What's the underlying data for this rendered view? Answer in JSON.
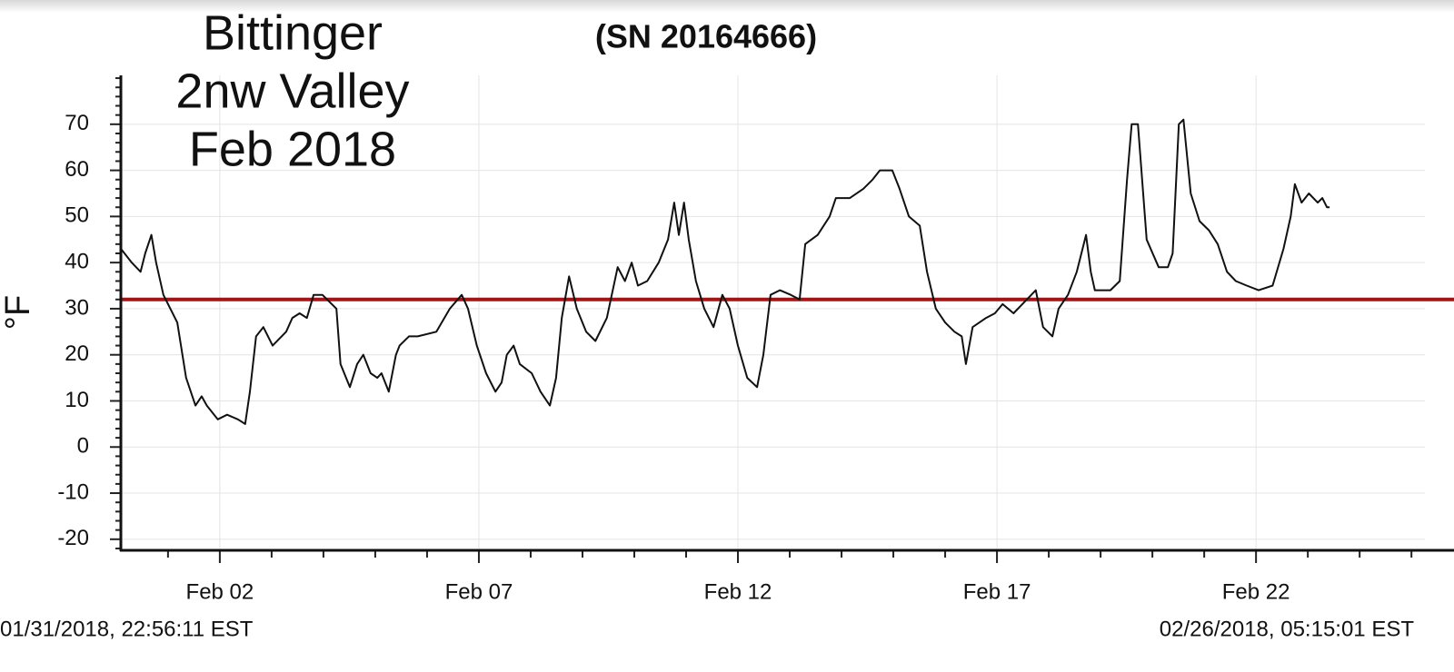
{
  "chart_data": {
    "type": "line",
    "title": [
      "Bittinger",
      "2nw Valley",
      "Feb 2018"
    ],
    "subtitle": "(SN 20164666)",
    "y_label": "°F",
    "footer_left": "01/31/2018, 22:56:11 EST",
    "footer_right": "02/26/2018, 05:15:01 EST",
    "xlim": [
      0.09,
      25.26
    ],
    "ylim": [
      -22.4,
      80.6
    ],
    "xticks": [
      {
        "value": 2,
        "label": "Feb 02"
      },
      {
        "value": 7,
        "label": "Feb 07"
      },
      {
        "value": 12,
        "label": "Feb 12"
      },
      {
        "value": 17,
        "label": "Feb 17"
      },
      {
        "value": 22,
        "label": "Feb 22"
      }
    ],
    "yticks": [
      -20,
      -10,
      0,
      10,
      20,
      30,
      40,
      50,
      60,
      70
    ],
    "xminorticks": [
      1,
      3,
      4,
      5,
      6,
      8,
      9,
      10,
      11,
      13,
      14,
      15,
      16,
      18,
      19,
      20,
      21,
      23,
      24,
      25
    ],
    "yminorticks": [
      -22,
      -18,
      -16,
      -14,
      -12,
      -8,
      -6,
      -4,
      -2,
      2,
      4,
      6,
      8,
      12,
      14,
      16,
      18,
      22,
      24,
      26,
      28,
      32,
      34,
      36,
      38,
      42,
      44,
      46,
      48,
      52,
      54,
      56,
      58,
      62,
      64,
      66,
      68,
      72,
      74,
      76,
      78,
      80
    ],
    "grid": true,
    "reference_line": {
      "value": 32,
      "color": "#a31515"
    },
    "x": [
      0.09,
      0.3,
      0.47,
      0.56,
      0.68,
      0.77,
      0.91,
      1.18,
      1.35,
      1.53,
      1.65,
      1.75,
      1.96,
      2.14,
      2.35,
      2.49,
      2.58,
      2.7,
      2.84,
      3.02,
      3.28,
      3.4,
      3.54,
      3.68,
      3.81,
      3.98,
      4.25,
      4.33,
      4.51,
      4.65,
      4.77,
      4.91,
      5.04,
      5.12,
      5.26,
      5.4,
      5.47,
      5.65,
      5.82,
      6.18,
      6.44,
      6.67,
      6.79,
      6.96,
      7.14,
      7.32,
      7.44,
      7.54,
      7.67,
      7.79,
      8.02,
      8.19,
      8.37,
      8.49,
      8.6,
      8.74,
      8.89,
      9.07,
      9.25,
      9.47,
      9.68,
      9.82,
      9.95,
      10.07,
      10.25,
      10.47,
      10.65,
      10.77,
      10.86,
      10.96,
      11.05,
      11.19,
      11.35,
      11.53,
      11.7,
      11.84,
      12.0,
      12.18,
      12.37,
      12.49,
      12.63,
      12.81,
      13.02,
      13.19,
      13.3,
      13.54,
      13.77,
      13.89,
      14.16,
      14.42,
      14.6,
      14.74,
      14.98,
      15.12,
      15.3,
      15.51,
      15.65,
      15.82,
      16.0,
      16.18,
      16.32,
      16.4,
      16.53,
      16.79,
      16.96,
      17.11,
      17.32,
      17.49,
      17.75,
      17.89,
      18.07,
      18.19,
      18.37,
      18.54,
      18.72,
      18.81,
      18.89,
      19.19,
      19.37,
      19.51,
      19.6,
      19.72,
      19.89,
      20.12,
      20.3,
      20.39,
      20.51,
      20.6,
      20.74,
      20.91,
      21.09,
      21.26,
      21.44,
      21.61,
      21.82,
      22.05,
      22.32,
      22.53,
      22.67,
      22.75,
      22.88,
      23.02,
      23.19,
      23.28,
      23.37,
      23.42
    ],
    "series": [
      {
        "color": "#111111",
        "values": [
          43,
          40,
          38,
          42,
          46,
          40,
          33,
          27,
          15,
          9,
          11,
          9,
          6,
          7,
          6,
          5,
          12,
          24,
          26,
          22,
          25,
          28,
          29,
          28,
          33,
          33,
          30,
          18,
          13,
          18,
          20,
          16,
          15,
          16,
          12,
          20,
          22,
          24,
          24,
          25,
          30,
          33,
          30,
          22,
          16,
          12,
          14,
          20,
          22,
          18,
          16,
          12,
          9,
          15,
          28,
          37,
          30,
          25,
          23,
          28,
          39,
          36,
          40,
          35,
          36,
          40,
          45,
          53,
          46,
          53,
          45,
          36,
          30,
          26,
          33,
          30,
          22,
          15,
          13,
          20,
          33,
          34,
          33,
          32,
          44,
          46,
          50,
          54,
          54,
          56,
          58,
          60,
          60,
          56,
          50,
          48,
          38,
          30,
          27,
          25,
          24,
          18,
          26,
          28,
          29,
          31,
          29,
          31,
          34,
          26,
          24,
          30,
          33,
          38,
          46,
          38,
          34,
          34,
          36,
          58,
          70,
          70,
          45,
          39,
          39,
          42,
          70,
          71,
          55,
          49,
          47,
          44,
          38,
          36,
          35,
          34,
          35,
          43,
          50,
          57,
          53,
          55,
          53,
          54,
          52,
          52
        ]
      }
    ]
  }
}
